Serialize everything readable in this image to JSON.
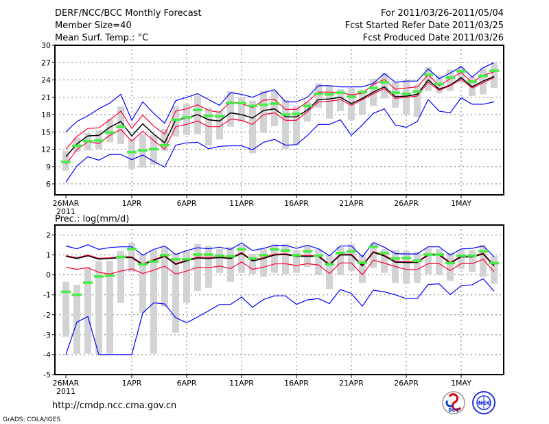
{
  "header": {
    "title": "DERF/NCC/BCC Monthly Forecast",
    "member_size": "Member Size=40",
    "variable": "Mean Surf. Temp.: °C",
    "period": "For 2011/03/26-2011/05/04",
    "fcst_started": "Fcst Started Refer Date 2011/03/25",
    "fcst_produced": "Fcst Produced Date 2011/03/26"
  },
  "footer": {
    "url": "http://cmdp.ncc.cma.gov.cn",
    "credit": "GrADS: COLA/IGES",
    "logos": [
      "BCC",
      "NCC"
    ]
  },
  "colors": {
    "blue": "#0000ff",
    "red": "#ff0033",
    "mean": "#000000",
    "green": "#44ee44",
    "gray": "#d3d3d6"
  },
  "chart_data": [
    {
      "type": "line",
      "title": "Mean Surf. Temp.: °C",
      "ylim": [
        4.1,
        30
      ],
      "yticks": [
        6,
        9,
        12,
        15,
        18,
        21,
        24,
        27,
        30
      ],
      "xtick_days": [
        0,
        6,
        11,
        16,
        21,
        26,
        31,
        36
      ],
      "xtick_labels": [
        "26MAR",
        "1APR",
        "6APR",
        "11APR",
        "16APR",
        "21APR",
        "26APR",
        "1MAY"
      ],
      "xtick_sublabel": "2011",
      "grid": true,
      "x_start": "2011-03-26",
      "n_days": 40,
      "series": [
        {
          "name": "max",
          "color": "blue",
          "values": [
            15.0,
            16.8,
            17.8,
            19.0,
            20.0,
            21.5,
            17.0,
            20.2,
            18.2,
            16.5,
            20.4,
            21.0,
            21.6,
            20.6,
            19.6,
            21.8,
            21.5,
            21.0,
            21.8,
            22.3,
            20.2,
            20.2,
            21.0,
            23.0,
            23.0,
            22.8,
            22.8,
            22.8,
            23.4,
            25.1,
            23.6,
            23.8,
            23.8,
            25.9,
            24.2,
            25.2,
            26.3,
            24.5,
            26.1,
            27.0
          ]
        },
        {
          "name": "upper",
          "color": "red",
          "values": [
            12.0,
            14.2,
            15.6,
            15.7,
            17.1,
            18.6,
            15.6,
            17.9,
            16.0,
            14.6,
            18.6,
            19.0,
            19.7,
            18.7,
            18.4,
            20.2,
            19.9,
            19.2,
            20.5,
            20.6,
            18.9,
            18.9,
            20.2,
            21.9,
            21.9,
            21.8,
            21.4,
            21.7,
            23.2,
            24.1,
            22.4,
            22.6,
            22.8,
            24.9,
            23.0,
            24.2,
            25.3,
            23.6,
            24.8,
            25.4
          ]
        },
        {
          "name": "mean",
          "color": "mean",
          "values": [
            10.7,
            12.9,
            14.3,
            14.4,
            15.8,
            16.8,
            14.3,
            16.4,
            14.6,
            13.1,
            17.1,
            17.4,
            18.0,
            17.1,
            16.9,
            18.3,
            18.0,
            17.4,
            18.7,
            19.0,
            17.6,
            17.6,
            18.8,
            20.6,
            20.7,
            21.0,
            19.9,
            20.8,
            21.9,
            22.8,
            21.1,
            21.2,
            21.5,
            24.0,
            22.4,
            23.1,
            24.4,
            22.8,
            23.8,
            24.6
          ]
        },
        {
          "name": "lower",
          "color": "red",
          "values": [
            9.4,
            11.9,
            13.3,
            13.0,
            14.4,
            15.4,
            13.4,
            15.1,
            13.5,
            12.0,
            15.9,
            16.3,
            16.9,
            15.9,
            15.9,
            17.2,
            17.0,
            16.3,
            18.0,
            18.3,
            17.0,
            17.0,
            18.5,
            20.2,
            20.3,
            20.6,
            19.6,
            20.6,
            21.6,
            22.5,
            20.8,
            21.0,
            21.2,
            23.6,
            22.2,
            23.0,
            24.1,
            22.6,
            23.5,
            24.4
          ]
        },
        {
          "name": "min",
          "color": "blue",
          "values": [
            6.3,
            9.1,
            10.7,
            10.1,
            11.1,
            11.1,
            10.2,
            11.0,
            9.9,
            8.9,
            12.7,
            13.1,
            13.2,
            12.1,
            12.5,
            12.6,
            12.6,
            11.9,
            13.2,
            13.7,
            12.7,
            12.8,
            14.4,
            16.3,
            16.3,
            17.1,
            14.4,
            16.2,
            18.2,
            19.0,
            16.2,
            15.8,
            16.8,
            20.6,
            18.6,
            18.3,
            20.9,
            19.8,
            19.8,
            20.2
          ]
        }
      ],
      "markers": [
        9.8,
        12.6,
        13.4,
        13.5,
        14.9,
        15.9,
        11.5,
        11.8,
        12.0,
        12.7,
        17.1,
        17.5,
        18.8,
        17.8,
        17.7,
        20.0,
        20.0,
        19.5,
        19.7,
        19.9,
        18.0,
        18.1,
        19.5,
        21.6,
        21.5,
        21.8,
        21.1,
        21.9,
        22.6,
        23.6,
        21.8,
        21.6,
        22.0,
        24.9,
        23.3,
        24.4,
        25.5,
        23.7,
        24.7,
        25.6
      ],
      "ranges": [
        [
          8.3,
          11.7
        ],
        [
          11.5,
          14.0
        ],
        [
          11.8,
          14.8
        ],
        [
          12.0,
          15.3
        ],
        [
          13.2,
          17.2
        ],
        [
          12.9,
          19.4
        ],
        [
          8.6,
          13.8
        ],
        [
          8.8,
          14.6
        ],
        [
          9.3,
          14.5
        ],
        [
          11.7,
          15.5
        ],
        [
          14.2,
          19.4
        ],
        [
          14.5,
          19.9
        ],
        [
          14.6,
          21.2
        ],
        [
          12.6,
          19.2
        ],
        [
          13.7,
          18.6
        ],
        [
          15.9,
          22.0
        ],
        [
          16.8,
          21.0
        ],
        [
          11.3,
          20.4
        ],
        [
          14.8,
          22.1
        ],
        [
          16.0,
          22.1
        ],
        [
          12.0,
          20.6
        ],
        [
          12.7,
          19.5
        ],
        [
          16.8,
          20.2
        ],
        [
          19.2,
          23.4
        ],
        [
          17.3,
          23.0
        ],
        [
          18.6,
          22.4
        ],
        [
          17.0,
          22.6
        ],
        [
          18.0,
          22.2
        ],
        [
          19.5,
          24.2
        ],
        [
          20.8,
          25.2
        ],
        [
          19.2,
          23.6
        ],
        [
          18.0,
          24.0
        ],
        [
          17.6,
          23.2
        ],
        [
          22.1,
          26.2
        ],
        [
          21.7,
          24.8
        ],
        [
          22.1,
          25.8
        ],
        [
          23.6,
          26.3
        ],
        [
          21.2,
          24.6
        ],
        [
          21.5,
          26.0
        ],
        [
          22.6,
          26.9
        ]
      ]
    },
    {
      "type": "line",
      "title": "Prec.: log(mm/d)",
      "ylim": [
        -5,
        2.5
      ],
      "yticks": [
        -5,
        -4,
        -3,
        -2,
        -1,
        0,
        1,
        2
      ],
      "xtick_days": [
        0,
        6,
        11,
        16,
        21,
        26,
        31,
        36
      ],
      "xtick_labels": [
        "26MAR",
        "1APR",
        "6APR",
        "11APR",
        "16APR",
        "21APR",
        "26APR",
        "1MAY"
      ],
      "xtick_sublabel": "2011",
      "grid": true,
      "x_start": "2011-03-26",
      "n_days": 40,
      "series": [
        {
          "name": "max",
          "color": "blue",
          "values": [
            1.45,
            1.31,
            1.51,
            1.28,
            1.37,
            1.41,
            1.41,
            0.99,
            1.28,
            1.45,
            1.02,
            1.22,
            1.36,
            1.31,
            1.39,
            1.28,
            1.6,
            1.22,
            1.33,
            1.48,
            1.48,
            1.33,
            1.48,
            1.31,
            0.96,
            1.45,
            1.45,
            0.91,
            1.62,
            1.39,
            1.07,
            1.05,
            1.05,
            1.41,
            1.41,
            0.99,
            1.3,
            1.33,
            1.45,
            0.91
          ]
        },
        {
          "name": "upper",
          "color": "red",
          "values": [
            0.97,
            0.86,
            1.0,
            0.83,
            0.86,
            0.91,
            0.91,
            0.55,
            0.77,
            0.97,
            0.57,
            0.74,
            0.9,
            0.87,
            0.92,
            0.86,
            1.12,
            0.74,
            0.87,
            1.04,
            1.06,
            0.97,
            0.97,
            0.97,
            0.54,
            1.04,
            1.04,
            0.49,
            1.17,
            0.99,
            0.68,
            0.66,
            0.66,
            1.04,
            1.04,
            0.63,
            0.94,
            0.94,
            1.09,
            0.49
          ]
        },
        {
          "name": "mean",
          "color": "mean",
          "values": [
            0.93,
            0.82,
            0.96,
            0.79,
            0.82,
            0.87,
            0.87,
            0.5,
            0.73,
            0.93,
            0.53,
            0.7,
            0.85,
            0.82,
            0.87,
            0.82,
            1.08,
            0.7,
            0.82,
            1.0,
            1.02,
            0.93,
            0.93,
            0.93,
            0.5,
            1.0,
            1.0,
            0.45,
            1.13,
            0.95,
            0.64,
            0.62,
            0.62,
            1.0,
            1.0,
            0.59,
            0.9,
            0.9,
            1.05,
            0.45
          ]
        },
        {
          "name": "lower",
          "color": "red",
          "values": [
            0.38,
            0.28,
            0.36,
            0.13,
            0.04,
            0.19,
            0.3,
            0.07,
            0.24,
            0.44,
            0.04,
            0.19,
            0.38,
            0.36,
            0.44,
            0.32,
            0.65,
            0.28,
            0.38,
            0.55,
            0.56,
            0.47,
            0.56,
            0.5,
            0.07,
            0.6,
            0.6,
            0.01,
            0.74,
            0.59,
            0.42,
            0.27,
            0.27,
            0.56,
            0.56,
            0.22,
            0.56,
            0.56,
            0.78,
            0.16
          ]
        },
        {
          "name": "min",
          "color": "blue",
          "values": [
            -4.0,
            -2.37,
            -2.09,
            -4.0,
            -4.0,
            -4.0,
            -4.0,
            -1.91,
            -1.4,
            -1.46,
            -2.14,
            -2.4,
            -2.11,
            -1.8,
            -1.48,
            -1.48,
            -1.11,
            -1.62,
            -1.23,
            -1.05,
            -1.05,
            -1.48,
            -1.25,
            -1.19,
            -1.44,
            -0.73,
            -0.93,
            -1.57,
            -0.77,
            -0.85,
            -1.0,
            -1.19,
            -1.19,
            -0.48,
            -0.45,
            -0.99,
            -0.54,
            -0.5,
            -0.19,
            -0.82
          ]
        }
      ],
      "markers": [
        -0.85,
        -1.0,
        -0.39,
        -0.08,
        -0.04,
        0.9,
        1.3,
        0.53,
        0.67,
        0.99,
        0.78,
        0.79,
        1.02,
        1.02,
        0.96,
        0.93,
        1.28,
        0.82,
        0.99,
        1.28,
        1.22,
        0.99,
        1.18,
        0.96,
        0.53,
        1.1,
        1.18,
        0.61,
        1.41,
        1.1,
        0.82,
        0.85,
        0.7,
        1.02,
        1.02,
        0.59,
        0.96,
        0.96,
        1.18,
        0.59
      ],
      "ranges": [
        [
          -3.1,
          -0.35
        ],
        [
          -3.95,
          -0.5
        ],
        [
          -3.95,
          0.4
        ],
        [
          -3.95,
          0.7
        ],
        [
          -3.95,
          0.7
        ],
        [
          -1.4,
          1.2
        ],
        [
          0.15,
          1.6
        ],
        [
          -1.9,
          1.05
        ],
        [
          -3.95,
          1.25
        ],
        [
          -1.6,
          1.4
        ],
        [
          -2.9,
          1.1
        ],
        [
          -1.4,
          1.2
        ],
        [
          -0.8,
          1.55
        ],
        [
          -0.65,
          1.45
        ],
        [
          0.1,
          1.3
        ],
        [
          -0.35,
          1.4
        ],
        [
          0.1,
          1.5
        ],
        [
          0.05,
          1.05
        ],
        [
          -0.1,
          1.3
        ],
        [
          0.1,
          1.55
        ],
        [
          0.05,
          1.55
        ],
        [
          0.1,
          1.25
        ],
        [
          0.4,
          1.5
        ],
        [
          0.0,
          1.3
        ],
        [
          -0.7,
          1.0
        ],
        [
          0.0,
          1.4
        ],
        [
          0.2,
          1.55
        ],
        [
          -0.4,
          1.0
        ],
        [
          0.35,
          1.6
        ],
        [
          0.1,
          1.3
        ],
        [
          -0.4,
          1.25
        ],
        [
          -0.45,
          1.2
        ],
        [
          -0.4,
          1.15
        ],
        [
          0.05,
          1.35
        ],
        [
          0.0,
          1.3
        ],
        [
          -0.3,
          1.1
        ],
        [
          0.3,
          1.25
        ],
        [
          0.15,
          1.25
        ],
        [
          -0.1,
          1.5
        ],
        [
          -0.45,
          0.95
        ]
      ]
    }
  ]
}
